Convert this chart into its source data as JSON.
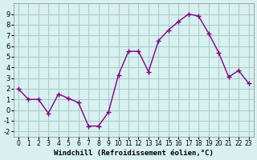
{
  "x": [
    0,
    1,
    2,
    3,
    4,
    5,
    6,
    7,
    8,
    9,
    10,
    11,
    12,
    13,
    14,
    15,
    16,
    17,
    18,
    19,
    20,
    21,
    22,
    23
  ],
  "y": [
    2,
    1,
    1,
    -0.3,
    1.5,
    1.1,
    0.7,
    -1.5,
    -1.5,
    -0.2,
    3.3,
    5.5,
    5.5,
    3.6,
    6.5,
    7.5,
    8.3,
    9.0,
    8.8,
    7.2,
    5.4,
    3.1,
    3.7,
    2.5
  ],
  "line_color": "#800080",
  "marker": "+",
  "bg_color": "#d8f0f0",
  "grid_color": "#aacccc",
  "xlabel": "Windchill (Refroidissement éolien,°C)",
  "xlim": [
    -0.5,
    23.5
  ],
  "ylim": [
    -2.5,
    10
  ],
  "yticks": [
    -2,
    -1,
    0,
    1,
    2,
    3,
    4,
    5,
    6,
    7,
    8,
    9
  ],
  "xticks": [
    0,
    1,
    2,
    3,
    4,
    5,
    6,
    7,
    8,
    9,
    10,
    11,
    12,
    13,
    14,
    15,
    16,
    17,
    18,
    19,
    20,
    21,
    22,
    23
  ]
}
